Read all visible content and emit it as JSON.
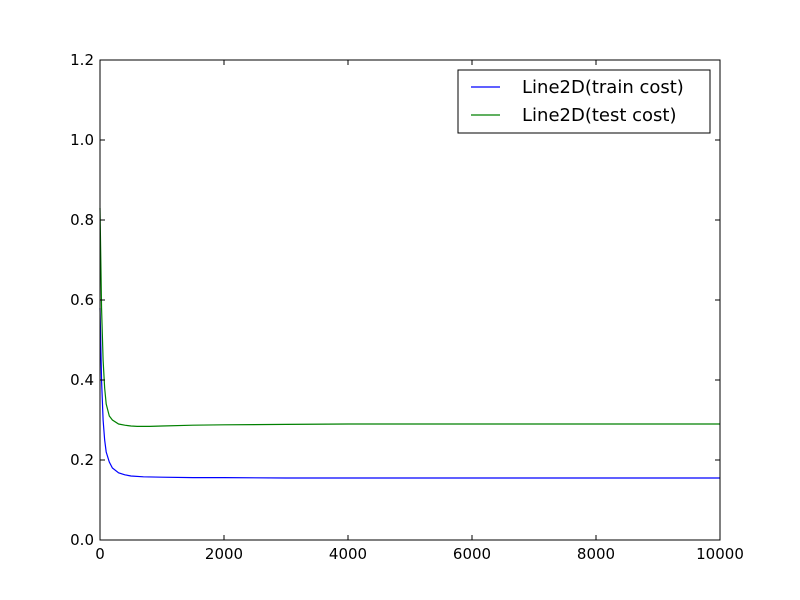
{
  "chart_data": {
    "type": "line",
    "title": "",
    "xlabel": "",
    "ylabel": "",
    "xlim": [
      0,
      10000
    ],
    "ylim": [
      0.0,
      1.2
    ],
    "x_ticks": [
      0,
      2000,
      4000,
      6000,
      8000,
      10000
    ],
    "y_ticks": [
      0.0,
      0.2,
      0.4,
      0.6,
      0.8,
      1.0,
      1.2
    ],
    "x_tick_labels": [
      "0",
      "2000",
      "4000",
      "6000",
      "8000",
      "10000"
    ],
    "y_tick_labels": [
      "0.0",
      "0.2",
      "0.4",
      "0.6",
      "0.8",
      "1.0",
      "1.2"
    ],
    "grid": false,
    "legend_position": "top-right",
    "series": [
      {
        "name": "Line2D(train cost)",
        "color": "#0000ff",
        "x": [
          0,
          25,
          50,
          75,
          100,
          150,
          200,
          300,
          400,
          500,
          700,
          1000,
          1500,
          2000,
          3000,
          4000,
          6000,
          8000,
          10000
        ],
        "y": [
          0.58,
          0.4,
          0.3,
          0.25,
          0.22,
          0.195,
          0.18,
          0.168,
          0.163,
          0.16,
          0.158,
          0.157,
          0.156,
          0.156,
          0.155,
          0.155,
          0.155,
          0.155,
          0.155
        ]
      },
      {
        "name": "Line2D(test cost)",
        "color": "#008000",
        "x": [
          0,
          25,
          50,
          75,
          100,
          150,
          200,
          300,
          400,
          500,
          600,
          800,
          1000,
          1500,
          2000,
          3000,
          4000,
          6000,
          8000,
          10000
        ],
        "y": [
          0.83,
          0.58,
          0.45,
          0.38,
          0.34,
          0.31,
          0.3,
          0.29,
          0.287,
          0.285,
          0.284,
          0.284,
          0.285,
          0.287,
          0.288,
          0.289,
          0.29,
          0.29,
          0.29,
          0.29
        ]
      }
    ]
  }
}
